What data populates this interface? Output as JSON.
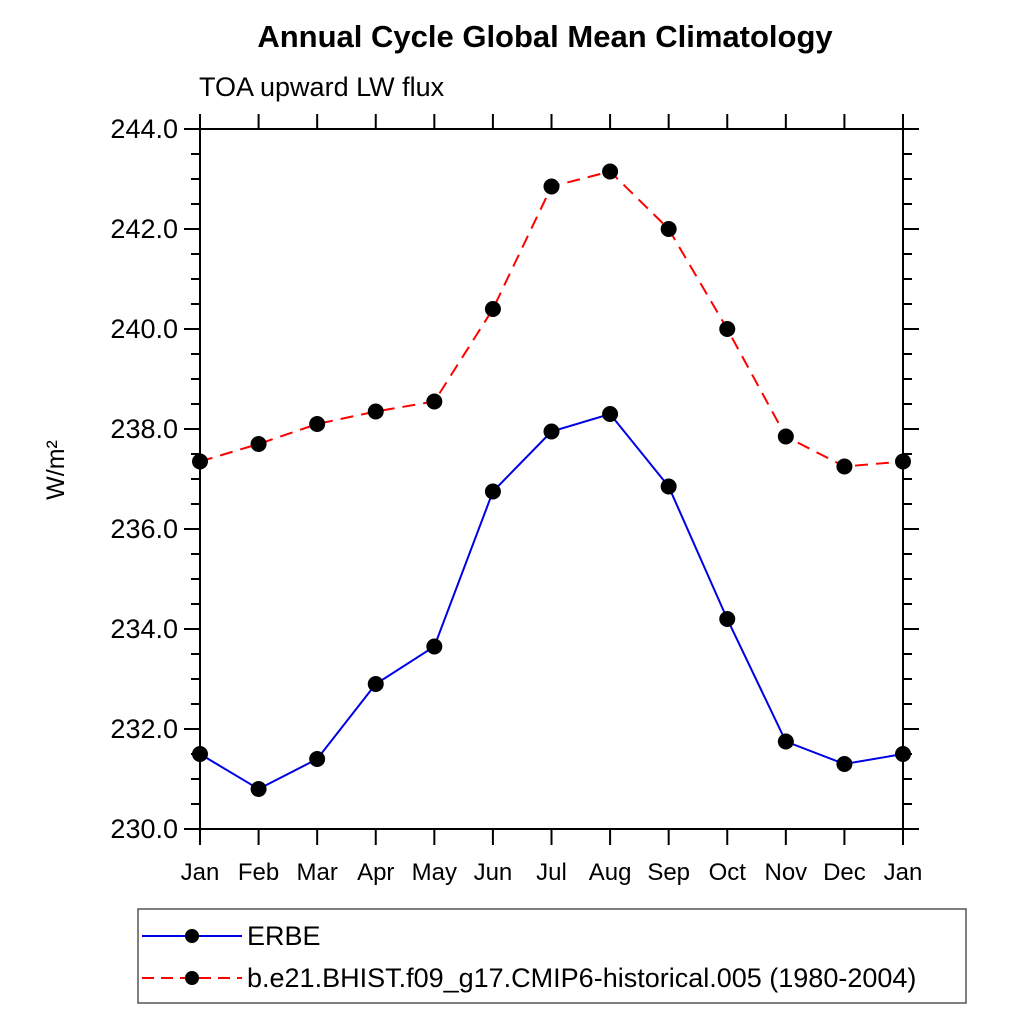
{
  "title": "Annual Cycle Global Mean Climatology",
  "subtitle": "TOA upward LW flux",
  "chart_data": {
    "type": "line",
    "categories": [
      "Jan",
      "Feb",
      "Mar",
      "Apr",
      "May",
      "Jun",
      "Jul",
      "Aug",
      "Sep",
      "Oct",
      "Nov",
      "Dec",
      "Jan"
    ],
    "series": [
      {
        "name": "ERBE",
        "color": "#0000e6",
        "line_style": "solid",
        "marker": "circle",
        "marker_color": "#000000",
        "values": [
          231.5,
          230.8,
          231.4,
          232.9,
          233.65,
          236.75,
          237.95,
          238.3,
          236.85,
          234.2,
          231.75,
          231.3,
          231.5
        ]
      },
      {
        "name": "b.e21.BHIST.f09_g17.CMIP6-historical.005 (1980-2004)",
        "color": "#ff0000",
        "line_style": "dashed",
        "marker": "circle",
        "marker_color": "#000000",
        "values": [
          237.35,
          237.7,
          238.1,
          238.35,
          238.55,
          240.4,
          242.85,
          243.15,
          242.0,
          240.0,
          237.85,
          237.25,
          237.35
        ]
      }
    ],
    "xlabel": "",
    "ylabel": "W/m²",
    "ylim": [
      230.0,
      244.0
    ],
    "ytick_major_interval": 2.0,
    "ytick_minor_interval": 0.5,
    "ytick_label_format": "0.0",
    "grid": false,
    "legend_position": "bottom-left",
    "axis_color": "#000000",
    "background_color": "#ffffff"
  }
}
